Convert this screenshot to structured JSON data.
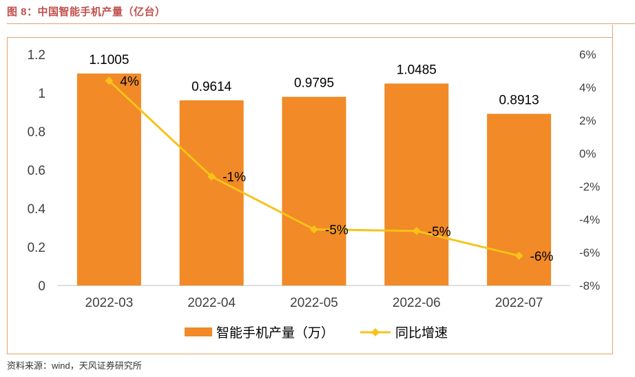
{
  "figure": {
    "title": "图 8：中国智能手机产量（亿台）",
    "source": "资料来源：wind，天风证券研究所"
  },
  "colors": {
    "bar": "#f18a27",
    "line": "#f8c21a",
    "rule": "#e5a26b",
    "title": "#c0504d",
    "text": "#404040",
    "axis": "#bfbfbf"
  },
  "chart_data": {
    "type": "bar",
    "categories": [
      "2022-03",
      "2022-04",
      "2022-05",
      "2022-06",
      "2022-07"
    ],
    "series": [
      {
        "name": "智能手机产量（万）",
        "type": "bar",
        "axis": "left",
        "values": [
          1.1005,
          0.9614,
          0.9795,
          1.0485,
          0.8913
        ],
        "labels": [
          "1.1005",
          "0.9614",
          "0.9795",
          "1.0485",
          "0.8913"
        ]
      },
      {
        "name": "同比增速",
        "type": "line",
        "axis": "right",
        "values": [
          4.4,
          -1.4,
          -4.6,
          -4.7,
          -6.2
        ],
        "labels": [
          "4%",
          "-1%",
          "-5%",
          "-5%",
          "-6%"
        ]
      }
    ],
    "y_left": {
      "range": [
        0,
        1.2
      ],
      "ticks": [
        "0",
        "0.2",
        "0.4",
        "0.6",
        "0.8",
        "1",
        "1.2"
      ]
    },
    "y_right": {
      "range": [
        -8,
        6
      ],
      "ticks": [
        "-8%",
        "-6%",
        "-4%",
        "-2%",
        "0%",
        "2%",
        "4%",
        "6%"
      ]
    },
    "legend_position": "bottom"
  }
}
